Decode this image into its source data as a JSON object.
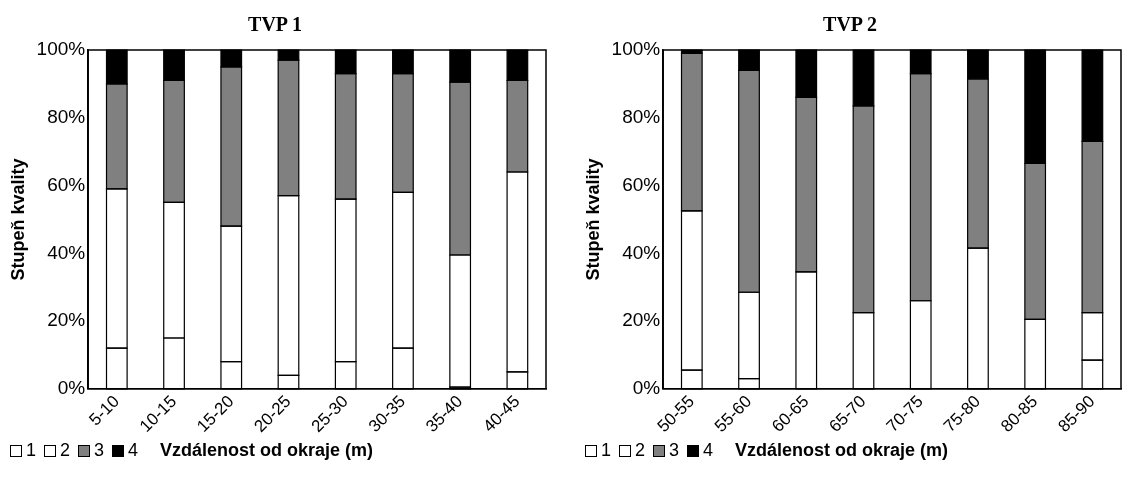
{
  "chart_data": [
    {
      "type": "bar",
      "title": "TVP 1",
      "xlabel": "Vzdálenost od okraje (m)",
      "ylabel": "Stupeň kvality",
      "stacked": true,
      "legend": "bottom left",
      "grid": false,
      "categories": [
        "5-10",
        "10-15",
        "15-20",
        "20-25",
        "25-30",
        "30-35",
        "35-40",
        "40-45"
      ],
      "series": [
        {
          "name": "1",
          "color": "#ffffff",
          "values": [
            12,
            15,
            8,
            4,
            8,
            12,
            0.5,
            5
          ]
        },
        {
          "name": "2",
          "color": "#ffffff",
          "values": [
            47,
            40,
            40,
            53,
            48,
            46,
            39,
            59
          ]
        },
        {
          "name": "3",
          "color": "#808080",
          "values": [
            31,
            36,
            47,
            40,
            37,
            35,
            51,
            27
          ]
        },
        {
          "name": "4",
          "color": "#000000",
          "values": [
            10,
            9,
            5,
            3,
            7,
            7,
            9.5,
            9
          ]
        }
      ],
      "ylim": [
        0,
        100
      ],
      "yticks": [
        {
          "value": 0,
          "label": "0%"
        },
        {
          "value": 20,
          "label": "20%"
        },
        {
          "value": 40,
          "label": "40%"
        },
        {
          "value": 60,
          "label": "60%"
        },
        {
          "value": 80,
          "label": "80%"
        },
        {
          "value": 100,
          "label": "100%"
        }
      ]
    },
    {
      "type": "bar",
      "title": "TVP 2",
      "xlabel": "Vzdálenost od okraje (m)",
      "ylabel": "Stupeň kvality",
      "stacked": true,
      "legend": "bottom left",
      "grid": false,
      "categories": [
        "50-55",
        "55-60",
        "60-65",
        "65-70",
        "70-75",
        "75-80",
        "80-85",
        "85-90"
      ],
      "series": [
        {
          "name": "1",
          "color": "#ffffff",
          "values": [
            5.5,
            3,
            0,
            0,
            0,
            0,
            0,
            8.5
          ]
        },
        {
          "name": "2",
          "color": "#ffffff",
          "values": [
            47,
            25.5,
            34.5,
            22.5,
            26,
            41.5,
            20.5,
            14
          ]
        },
        {
          "name": "3",
          "color": "#808080",
          "values": [
            46.5,
            65.5,
            51.5,
            61,
            67,
            50,
            46,
            50.5
          ]
        },
        {
          "name": "4",
          "color": "#000000",
          "values": [
            1,
            6,
            14,
            16.5,
            7,
            8.5,
            33.5,
            27
          ]
        }
      ],
      "ylim": [
        0,
        100
      ],
      "yticks": [
        {
          "value": 0,
          "label": "0%"
        },
        {
          "value": 20,
          "label": "20%"
        },
        {
          "value": 40,
          "label": "40%"
        },
        {
          "value": 60,
          "label": "60%"
        },
        {
          "value": 80,
          "label": "80%"
        },
        {
          "value": 100,
          "label": "100%"
        }
      ]
    }
  ]
}
